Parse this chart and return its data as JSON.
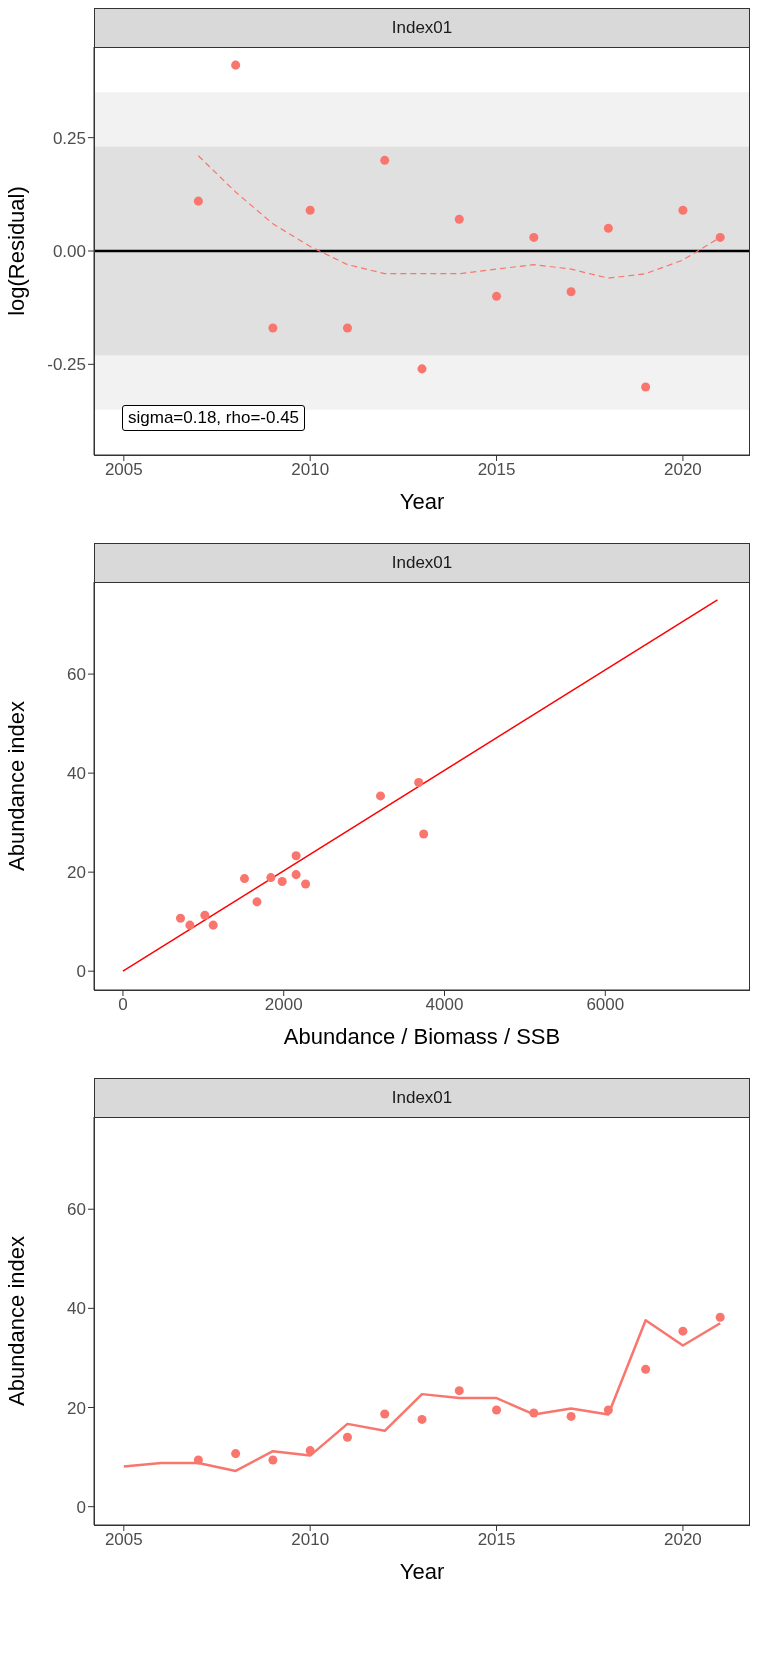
{
  "chart_data": [
    {
      "type": "scatter",
      "title": "Index01",
      "xlabel": "Year",
      "ylabel": "log(Residual)",
      "xlim": [
        2004.2,
        2021.8
      ],
      "ylim": [
        -0.45,
        0.45
      ],
      "xticks": [
        2005,
        2010,
        2015,
        2020
      ],
      "yticks": [
        {
          "value": -0.25,
          "label": "-0.25"
        },
        {
          "value": 0,
          "label": "0.00"
        },
        {
          "value": 0.25,
          "label": "0.25"
        }
      ],
      "grid": false,
      "marker": "circle",
      "bands": [
        {
          "axis": "y",
          "from": -0.35,
          "to": 0.35,
          "color": "#f2f2f2"
        },
        {
          "axis": "y",
          "from": -0.23,
          "to": 0.23,
          "color": "#e0e0e0"
        }
      ],
      "ref_lines": [
        {
          "axis": "y",
          "value": 0,
          "color": "#000000"
        }
      ],
      "series": [
        {
          "color": "#f8766d",
          "x": [
            2007,
            2008,
            2009,
            2010,
            2011,
            2012,
            2013,
            2014,
            2015,
            2016,
            2017,
            2018,
            2019,
            2020,
            2021
          ],
          "values": [
            0.11,
            0.41,
            -0.17,
            0.09,
            -0.17,
            0.2,
            -0.26,
            0.07,
            -0.1,
            0.03,
            -0.09,
            0.05,
            -0.3,
            0.09,
            0.03
          ]
        },
        {
          "type": "line",
          "line_style": "dashed",
          "marker": "none",
          "color": "#f8766d",
          "x": [
            2007,
            2008,
            2009,
            2010,
            2011,
            2012,
            2013,
            2014,
            2015,
            2016,
            2017,
            2018,
            2019,
            2020,
            2021
          ],
          "values": [
            0.21,
            0.13,
            0.06,
            0.01,
            -0.03,
            -0.05,
            -0.05,
            -0.05,
            -0.04,
            -0.03,
            -0.04,
            -0.06,
            -0.05,
            -0.02,
            0.03
          ]
        }
      ],
      "annotations": [
        "sigma=0.18, rho=-0.45"
      ]
    },
    {
      "type": "scatter",
      "title": "Index01",
      "xlabel": "Abundance / Biomass / SSB",
      "ylabel": "Abundance index",
      "xlim": [
        -360,
        7800
      ],
      "ylim": [
        -3.8,
        78.6
      ],
      "xticks": [
        0,
        2000,
        4000,
        6000
      ],
      "yticks": [
        0,
        20,
        40,
        60
      ],
      "grid": false,
      "marker": "circle",
      "series": [
        {
          "color": "#f8766d",
          "x": [
            716,
            833,
            1019,
            1123,
            1512,
            1667,
            1815,
            1840,
            1981,
            2154,
            2154,
            2272,
            3204,
            3679,
            3741
          ],
          "values": [
            10.7,
            9.3,
            11.3,
            9.3,
            18.7,
            14,
            null,
            18.9,
            18.1,
            23.3,
            19.5,
            17.6,
            35.4,
            38.1,
            27.7
          ]
        },
        {
          "type": "line",
          "line_style": "solid",
          "marker": "none",
          "color": "#ff0000",
          "x": [
            0,
            7395
          ],
          "values": [
            0,
            75
          ]
        }
      ]
    },
    {
      "type": "scatter",
      "title": "Index01",
      "xlabel": "Year",
      "ylabel": "Abundance index",
      "xlim": [
        2004.2,
        2021.8
      ],
      "ylim": [
        -3.7,
        78.6
      ],
      "xticks": [
        2005,
        2010,
        2015,
        2020
      ],
      "yticks": [
        0,
        20,
        40,
        60
      ],
      "grid": false,
      "marker": "circle",
      "series": [
        {
          "color": "#f8766d",
          "x": [
            2007,
            2008,
            2009,
            2010,
            2011,
            2012,
            2013,
            2014,
            2015,
            2016,
            2017,
            2018,
            2019,
            2020,
            2021
          ],
          "values": [
            9.4,
            10.7,
            9.4,
            11.3,
            14,
            18.7,
            17.6,
            23.4,
            19.5,
            18.9,
            18.2,
            19.5,
            27.7,
            35.4,
            38.2
          ]
        },
        {
          "type": "line",
          "line_style": "solid",
          "marker": "none",
          "color": "#f8766d",
          "x": [
            2005,
            2006,
            2007,
            2008,
            2009,
            2010,
            2011,
            2012,
            2013,
            2014,
            2015,
            2016,
            2017,
            2018,
            2019,
            2020,
            2021
          ],
          "values": [
            8.1,
            8.8,
            8.8,
            7.2,
            11.2,
            10.3,
            16.7,
            15.3,
            22.7,
            21.9,
            21.9,
            18.6,
            19.8,
            18.6,
            37.6,
            32.5,
            37
          ]
        }
      ]
    }
  ]
}
